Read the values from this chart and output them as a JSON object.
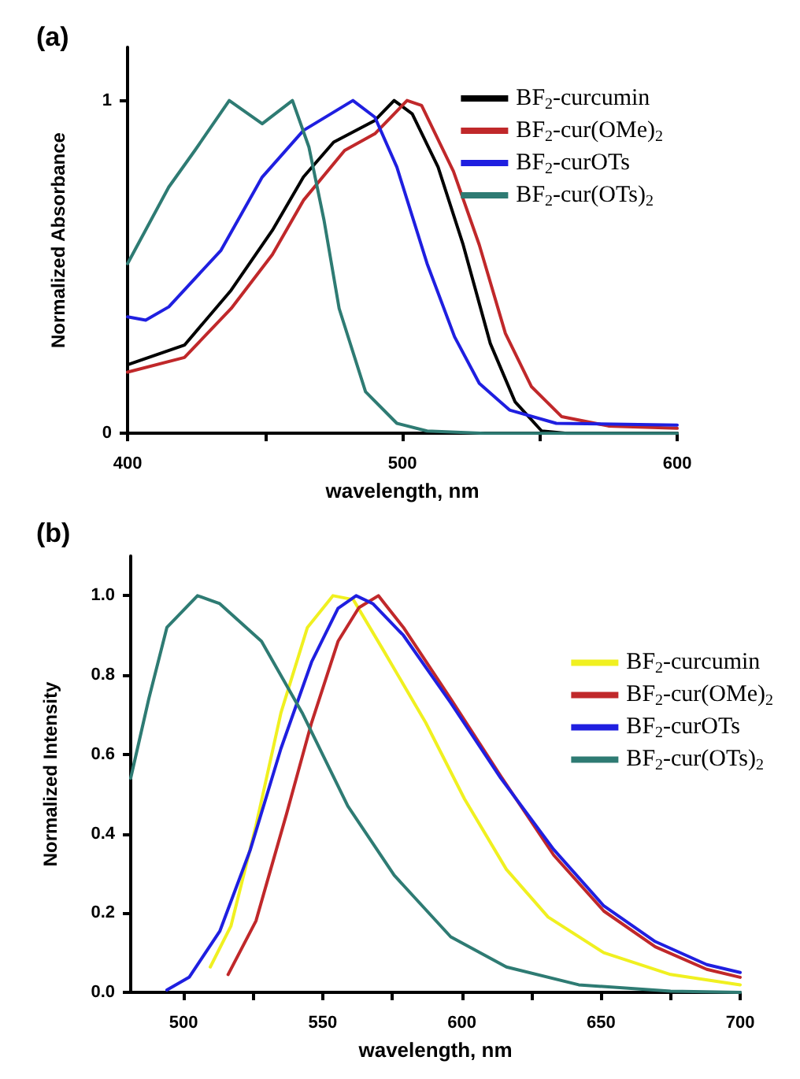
{
  "chart_data": [
    {
      "type": "line",
      "title": "(a)",
      "xlabel": "wavelength, nm",
      "ylabel": "Normalized Absorbance",
      "xlim": [
        400,
        600
      ],
      "ylim": [
        0,
        1.16
      ],
      "xticks": [
        400,
        {
          "value": 450,
          "label": null
        },
        500,
        {
          "value": 550,
          "label": null
        },
        600
      ],
      "yticks": [
        0,
        1
      ],
      "grid": false,
      "legend": "top right",
      "marker": "none",
      "line_style": "solid",
      "series": [
        {
          "name": "BF$_{2}$-curcumin",
          "color": "#000000",
          "x": [
            400,
            420.7,
            437.7,
            452.7,
            464,
            475,
            490,
            497,
            503.6,
            513,
            522,
            532,
            541,
            550.7,
            560,
            600
          ],
          "values": [
            0.206,
            0.265,
            0.43,
            0.61,
            0.77,
            0.875,
            0.94,
            1.0,
            0.96,
            0.8,
            0.57,
            0.27,
            0.095,
            0.007,
            0,
            0
          ]
        },
        {
          "name": "BF$_{2}$-cur(OMe)$_{2}$",
          "color": "#c0282a",
          "x": [
            400,
            420.7,
            437.7,
            452.7,
            464,
            479,
            490,
            501.7,
            507,
            518.6,
            528,
            537.5,
            547,
            558,
            575,
            600
          ],
          "values": [
            0.184,
            0.228,
            0.375,
            0.537,
            0.7,
            0.85,
            0.9,
            1.0,
            0.985,
            0.787,
            0.566,
            0.3,
            0.14,
            0.05,
            0.022,
            0.015
          ]
        },
        {
          "name": "BF$_{2}$-curOTs",
          "color": "#1f1fe0",
          "x": [
            400,
            406.6,
            415,
            434,
            449,
            464,
            482,
            490,
            498,
            509,
            519,
            528,
            539,
            556,
            600
          ],
          "values": [
            0.35,
            0.34,
            0.38,
            0.55,
            0.77,
            0.91,
            1.0,
            0.95,
            0.8,
            0.51,
            0.29,
            0.15,
            0.07,
            0.03,
            0.025
          ]
        },
        {
          "name": "BF$_{2}$-cur(OTs)$_{2}$",
          "color": "#2e7b73",
          "x": [
            400,
            415,
            424.5,
            437,
            449,
            460,
            466,
            471.5,
            477,
            486.6,
            498,
            509,
            530,
            600
          ],
          "values": [
            0.51,
            0.74,
            0.85,
            1.0,
            0.93,
            1.0,
            0.86,
            0.64,
            0.375,
            0.125,
            0.03,
            0.007,
            0,
            0
          ]
        }
      ]
    },
    {
      "type": "line",
      "title": "(b)",
      "xlabel": "wavelength, nm",
      "ylabel": "Normalized Intensity",
      "xlim": [
        481,
        700
      ],
      "ylim": [
        0,
        1.1
      ],
      "xticks": [
        500,
        {
          "value": 525,
          "label": null
        },
        550,
        {
          "value": 575,
          "label": null
        },
        600,
        {
          "value": 625,
          "label": null
        },
        650,
        {
          "value": 675,
          "label": null
        },
        700
      ],
      "yticks": [
        {
          "value": 0,
          "label": "0.0"
        },
        {
          "value": 0.2,
          "label": "0.2"
        },
        {
          "value": 0.4,
          "label": "0.4"
        },
        {
          "value": 0.6,
          "label": "0.6"
        },
        {
          "value": 0.8,
          "label": "0.8"
        },
        {
          "value": 1,
          "label": "1.0"
        }
      ],
      "grid": false,
      "legend": "right",
      "marker": "none",
      "line_style": "solid",
      "series": [
        {
          "name": "BF$_{2}$-curcumin",
          "color": "#f0f020",
          "x": [
            509.6,
            517,
            526,
            535,
            544.5,
            553.7,
            561,
            572,
            587,
            601,
            616,
            631,
            651,
            675,
            700
          ],
          "values": [
            0.064,
            0.167,
            0.42,
            0.705,
            0.92,
            1.0,
            0.99,
            0.86,
            0.68,
            0.487,
            0.31,
            0.19,
            0.1,
            0.045,
            0.019
          ]
        },
        {
          "name": "BF$_{2}$-cur(OMe)$_{2}$",
          "color": "#c0282a",
          "x": [
            516,
            526,
            537,
            546,
            555.5,
            563,
            570,
            579,
            596,
            614,
            633,
            651,
            669.5,
            688,
            700
          ],
          "values": [
            0.045,
            0.18,
            0.45,
            0.68,
            0.885,
            0.97,
            1.0,
            0.92,
            0.74,
            0.545,
            0.346,
            0.205,
            0.115,
            0.058,
            0.038
          ]
        },
        {
          "name": "BF$_{2}$-curOTs",
          "color": "#1f1fe0",
          "x": [
            494,
            502,
            513,
            524,
            535,
            546,
            555.5,
            562,
            568,
            579,
            596,
            614,
            633,
            651,
            669.5,
            688,
            700
          ],
          "values": [
            0.006,
            0.038,
            0.154,
            0.36,
            0.615,
            0.833,
            0.968,
            1.0,
            0.98,
            0.9,
            0.73,
            0.54,
            0.36,
            0.218,
            0.128,
            0.07,
            0.05
          ]
        },
        {
          "name": "BF$_{2}$-cur(OTs)$_{2}$",
          "color": "#2e7b73",
          "x": [
            481,
            487.5,
            494,
            505,
            513,
            528,
            542.6,
            559,
            575.7,
            596,
            616,
            642,
            675,
            700
          ],
          "values": [
            0.54,
            0.74,
            0.92,
            1.0,
            0.98,
            0.885,
            0.705,
            0.47,
            0.295,
            0.14,
            0.064,
            0.019,
            0.003,
            0
          ]
        }
      ]
    }
  ]
}
